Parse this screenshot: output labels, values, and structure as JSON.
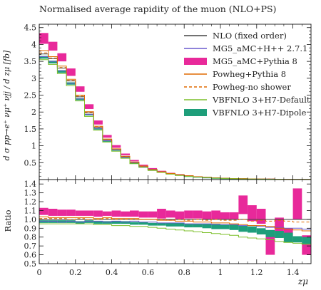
{
  "chart_data": {
    "type": "histogram",
    "title": "Normalised average rapidity of the muon (NLO+PS)",
    "ylabel_main": "d σ pp→e⁺ νμ⁺ νjj / d zμ [fb]",
    "ylabel_ratio": "Ratio",
    "xlabel": "zμ",
    "xlim": [
      0,
      1.5
    ],
    "ylim_main": [
      0,
      4.6
    ],
    "ylim_ratio": [
      0.5,
      1.45
    ],
    "x_ticks": [
      "0",
      "0.2",
      "0.4",
      "0.6",
      "0.8",
      "1",
      "1.2",
      "1.4"
    ],
    "y_ticks_main": [
      "0.5",
      "1",
      "1.5",
      "2",
      "2.5",
      "3",
      "3.5",
      "4",
      "4.5"
    ],
    "y_ticks_ratio": [
      "0.5",
      "0.6",
      "0.7",
      "0.8",
      "0.9",
      "1.0",
      "1.1",
      "1.2",
      "1.3",
      "1.4"
    ],
    "bin_edges": [
      0,
      0.05,
      0.1,
      0.15,
      0.2,
      0.25,
      0.3,
      0.35,
      0.4,
      0.45,
      0.5,
      0.55,
      0.6,
      0.65,
      0.7,
      0.75,
      0.8,
      0.85,
      0.9,
      0.95,
      1.0,
      1.05,
      1.1,
      1.15,
      1.2,
      1.25,
      1.3,
      1.35,
      1.4,
      1.45,
      1.5
    ],
    "series": [
      {
        "name": "NLO (fixed order)",
        "style": "line",
        "color": "#444444",
        "dash": false,
        "values": [
          3.72,
          3.58,
          3.3,
          2.92,
          2.45,
          1.97,
          1.55,
          1.18,
          0.9,
          0.68,
          0.51,
          0.39,
          0.3,
          0.23,
          0.18,
          0.14,
          0.11,
          0.085,
          0.066,
          0.052,
          0.041,
          0.032,
          0.026,
          0.021,
          0.017,
          0.014,
          0.011,
          0.009,
          0.007,
          0.006
        ],
        "ratio": [
          1,
          1,
          1,
          1,
          1,
          1,
          1,
          1,
          1,
          1,
          1,
          1,
          1,
          1,
          1,
          1,
          1,
          1,
          1,
          1,
          1,
          1,
          1,
          1,
          1,
          1,
          1,
          1,
          1,
          1
        ]
      },
      {
        "name": "MG5_aMC+H++ 2.7.1",
        "style": "line",
        "color": "#6a5acd",
        "dash": false,
        "values": [
          3.64,
          3.5,
          3.22,
          2.85,
          2.39,
          1.93,
          1.52,
          1.15,
          0.88,
          0.66,
          0.5,
          0.38,
          0.29,
          0.22,
          0.17,
          0.13,
          0.1,
          0.08,
          0.062,
          0.049,
          0.038,
          0.03,
          0.024,
          0.019,
          0.015,
          0.012,
          0.01,
          0.008,
          0.006,
          0.005
        ],
        "ratio": [
          0.98,
          0.98,
          0.97,
          0.98,
          0.97,
          0.98,
          0.98,
          0.97,
          0.98,
          0.97,
          0.98,
          0.97,
          0.97,
          0.96,
          0.96,
          0.96,
          0.95,
          0.95,
          0.95,
          0.94,
          0.94,
          0.94,
          0.93,
          0.93,
          0.92,
          0.91,
          0.91,
          0.9,
          0.9,
          0.89
        ]
      },
      {
        "name": "MG5_aMC+Pythia 8",
        "style": "band",
        "color": "#e8299a",
        "dash": false,
        "values": [
          4.18,
          3.95,
          3.62,
          3.18,
          2.68,
          2.16,
          1.69,
          1.28,
          0.98,
          0.74,
          0.56,
          0.42,
          0.32,
          0.25,
          0.19,
          0.15,
          0.12,
          0.092,
          0.072,
          0.056,
          0.044,
          0.036,
          0.028,
          0.022,
          0.018,
          0.014,
          0.012,
          0.01,
          0.008,
          0.006
        ],
        "band_lo": [
          4.02,
          3.82,
          3.5,
          3.07,
          2.6,
          2.09,
          1.63,
          1.24,
          0.94,
          0.72,
          0.54,
          0.4,
          0.31,
          0.24,
          0.18,
          0.14,
          0.11,
          0.088,
          0.068,
          0.053,
          0.042,
          0.033,
          0.026,
          0.021,
          0.016,
          0.013,
          0.011,
          0.009,
          0.007,
          0.005
        ],
        "band_hi": [
          4.34,
          4.08,
          3.74,
          3.29,
          2.76,
          2.23,
          1.75,
          1.32,
          1.02,
          0.77,
          0.58,
          0.44,
          0.34,
          0.26,
          0.2,
          0.16,
          0.125,
          0.097,
          0.076,
          0.059,
          0.047,
          0.038,
          0.03,
          0.024,
          0.019,
          0.016,
          0.013,
          0.011,
          0.009,
          0.007
        ],
        "ratio_lo": [
          1.05,
          1.04,
          1.04,
          1.04,
          1.04,
          1.04,
          1.03,
          1.04,
          1.03,
          1.03,
          1.03,
          1.02,
          1.02,
          1.01,
          1.02,
          1.0,
          1.01,
          1.01,
          1.0,
          1.0,
          1.0,
          1.0,
          1.06,
          0.98,
          0.95,
          0.6,
          0.8,
          0.75,
          1.0,
          0.6
        ],
        "ratio_hi": [
          1.13,
          1.12,
          1.11,
          1.11,
          1.1,
          1.1,
          1.1,
          1.09,
          1.1,
          1.09,
          1.1,
          1.09,
          1.09,
          1.12,
          1.1,
          1.09,
          1.1,
          1.1,
          1.09,
          1.1,
          1.08,
          1.08,
          1.27,
          1.16,
          1.12,
          0.82,
          1.02,
          0.9,
          1.35,
          0.82
        ]
      },
      {
        "name": "Powheg+Pythia 8",
        "style": "line",
        "color": "#e06a00",
        "dash": false,
        "values": [
          3.82,
          3.64,
          3.36,
          2.97,
          2.5,
          2.01,
          1.58,
          1.2,
          0.91,
          0.69,
          0.52,
          0.4,
          0.3,
          0.23,
          0.18,
          0.14,
          0.11,
          0.085,
          0.066,
          0.051,
          0.04,
          0.031,
          0.025,
          0.02,
          0.016,
          0.013,
          0.01,
          0.008,
          0.007,
          0.005
        ],
        "ratio": [
          1.03,
          1.02,
          1.02,
          1.02,
          1.02,
          1.02,
          1.01,
          1.02,
          1.01,
          1.01,
          1.01,
          1.0,
          1.0,
          0.99,
          0.99,
          0.98,
          0.98,
          0.97,
          0.97,
          0.96,
          0.96,
          0.95,
          0.94,
          0.93,
          0.93,
          0.92,
          0.9,
          0.89,
          0.88,
          0.87
        ]
      },
      {
        "name": "Powheg-no shower",
        "style": "line",
        "color": "#e06a00",
        "dash": true,
        "values": [
          3.75,
          3.6,
          3.32,
          2.94,
          2.47,
          1.99,
          1.56,
          1.19,
          0.9,
          0.68,
          0.51,
          0.39,
          0.3,
          0.23,
          0.18,
          0.14,
          0.11,
          0.085,
          0.066,
          0.052,
          0.041,
          0.032,
          0.026,
          0.021,
          0.017,
          0.014,
          0.011,
          0.009,
          0.007,
          0.006
        ],
        "ratio": [
          1.01,
          1.01,
          1.01,
          1.0,
          1.01,
          1.0,
          1.0,
          1.01,
          1.0,
          1.0,
          1.0,
          1.0,
          1.0,
          1.0,
          0.99,
          1.0,
          0.99,
          1.0,
          0.99,
          1.0,
          0.99,
          0.99,
          1.0,
          0.98,
          0.99,
          0.98,
          0.99,
          0.98,
          0.97,
          0.97
        ]
      },
      {
        "name": "VBFNLO 3+H7-Default",
        "style": "line",
        "color": "#7cbf2a",
        "dash": false,
        "values": [
          3.55,
          3.41,
          3.14,
          2.78,
          2.33,
          1.87,
          1.46,
          1.11,
          0.84,
          0.63,
          0.47,
          0.36,
          0.27,
          0.21,
          0.16,
          0.12,
          0.095,
          0.073,
          0.056,
          0.043,
          0.033,
          0.026,
          0.02,
          0.016,
          0.012,
          0.01,
          0.008,
          0.006,
          0.005,
          0.004
        ],
        "ratio": [
          0.95,
          0.95,
          0.95,
          0.95,
          0.95,
          0.95,
          0.94,
          0.94,
          0.93,
          0.93,
          0.92,
          0.92,
          0.91,
          0.9,
          0.89,
          0.88,
          0.87,
          0.86,
          0.85,
          0.84,
          0.83,
          0.82,
          0.8,
          0.79,
          0.78,
          0.77,
          0.75,
          0.74,
          0.73,
          0.72
        ]
      },
      {
        "name": "VBFNLO 3+H7-Dipole",
        "style": "band",
        "color": "#1e9e7a",
        "dash": false,
        "values": [
          3.62,
          3.48,
          3.2,
          2.84,
          2.38,
          1.92,
          1.5,
          1.14,
          0.87,
          0.65,
          0.49,
          0.37,
          0.28,
          0.22,
          0.17,
          0.13,
          0.1,
          0.078,
          0.06,
          0.047,
          0.037,
          0.029,
          0.023,
          0.018,
          0.014,
          0.011,
          0.009,
          0.007,
          0.006,
          0.005
        ],
        "band_lo": [
          3.58,
          3.44,
          3.16,
          2.81,
          2.35,
          1.9,
          1.48,
          1.12,
          0.86,
          0.64,
          0.48,
          0.36,
          0.27,
          0.21,
          0.16,
          0.12,
          0.096,
          0.074,
          0.057,
          0.044,
          0.034,
          0.027,
          0.021,
          0.016,
          0.013,
          0.01,
          0.008,
          0.006,
          0.005,
          0.004
        ],
        "band_hi": [
          3.66,
          3.52,
          3.24,
          2.88,
          2.41,
          1.94,
          1.52,
          1.16,
          0.88,
          0.66,
          0.5,
          0.38,
          0.29,
          0.23,
          0.18,
          0.14,
          0.104,
          0.082,
          0.063,
          0.05,
          0.04,
          0.031,
          0.025,
          0.02,
          0.016,
          0.012,
          0.01,
          0.008,
          0.007,
          0.006
        ],
        "ratio_lo": [
          0.96,
          0.96,
          0.96,
          0.96,
          0.95,
          0.96,
          0.95,
          0.95,
          0.95,
          0.95,
          0.94,
          0.94,
          0.93,
          0.93,
          0.92,
          0.92,
          0.91,
          0.91,
          0.9,
          0.89,
          0.89,
          0.88,
          0.86,
          0.85,
          0.83,
          0.8,
          0.79,
          0.74,
          0.74,
          0.72
        ],
        "ratio_hi": [
          0.99,
          0.99,
          0.99,
          0.99,
          0.98,
          0.99,
          0.98,
          0.98,
          0.98,
          0.98,
          0.97,
          0.97,
          0.96,
          0.96,
          0.96,
          0.96,
          0.95,
          0.95,
          0.95,
          0.95,
          0.94,
          0.94,
          0.93,
          0.92,
          0.9,
          0.88,
          0.87,
          0.85,
          0.81,
          0.8
        ]
      }
    ]
  }
}
